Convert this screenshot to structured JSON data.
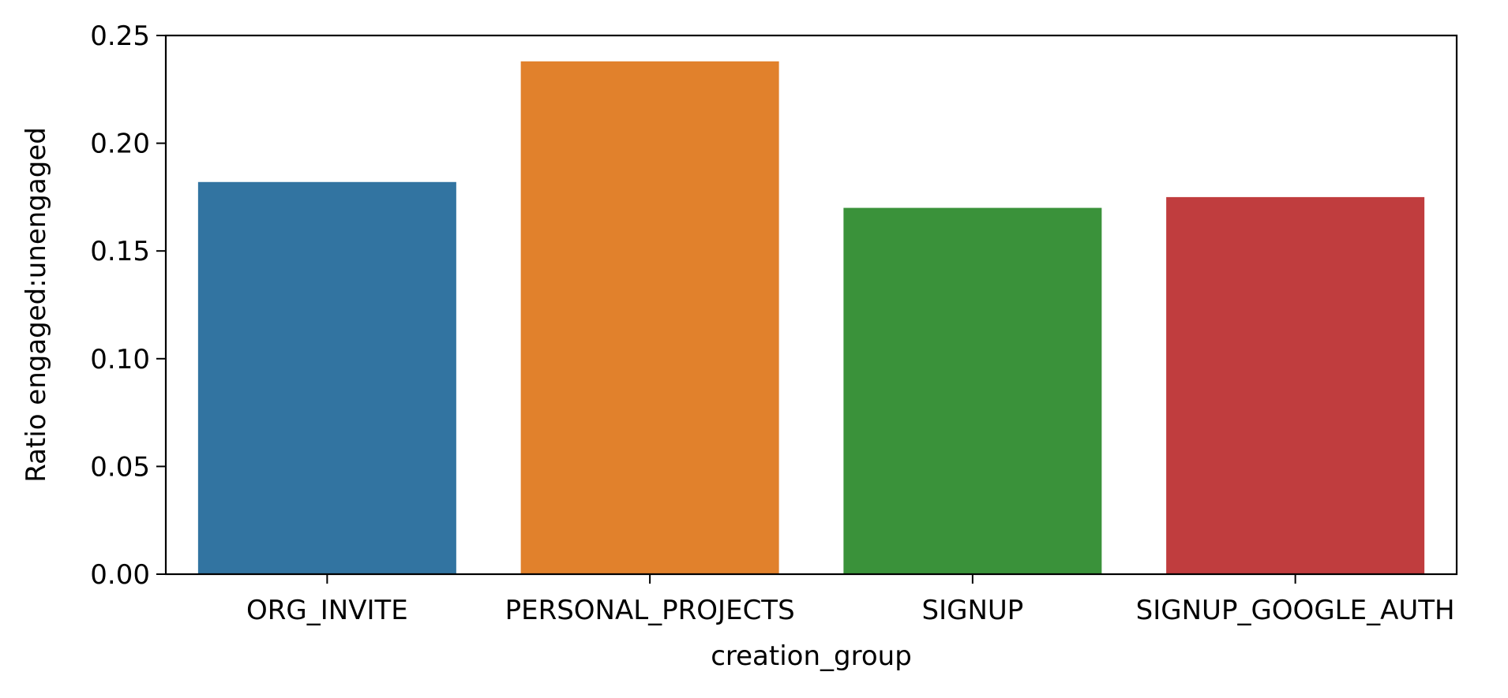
{
  "chart_data": {
    "type": "bar",
    "categories": [
      "ORG_INVITE",
      "PERSONAL_PROJECTS",
      "SIGNUP",
      "SIGNUP_GOOGLE_AUTH"
    ],
    "values": [
      0.182,
      0.238,
      0.17,
      0.175
    ],
    "colors": [
      "#3274a1",
      "#e1812c",
      "#3a923a",
      "#c03d3e"
    ],
    "xlabel": "creation_group",
    "ylabel": "Ratio engaged:unengaged",
    "ylim": [
      0,
      0.25
    ],
    "yticks": [
      "0.00",
      "0.05",
      "0.10",
      "0.15",
      "0.20",
      "0.25"
    ],
    "grid": false
  }
}
